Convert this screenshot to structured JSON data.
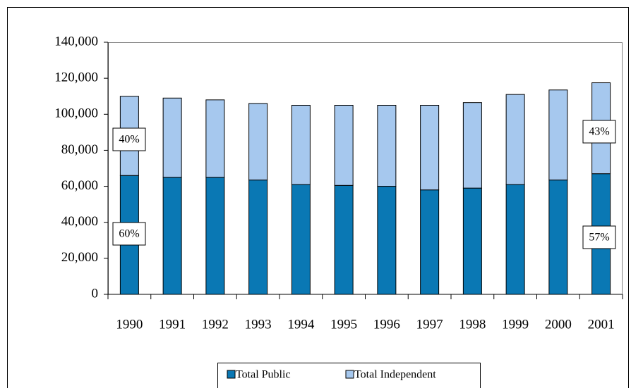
{
  "chart_data": {
    "type": "stacked_bar",
    "categories": [
      "1990",
      "1991",
      "1992",
      "1993",
      "1994",
      "1995",
      "1996",
      "1997",
      "1998",
      "1999",
      "2000",
      "2001"
    ],
    "series": [
      {
        "name": "Total Public",
        "color": "#0a78b4",
        "values": [
          66000,
          65000,
          65000,
          63500,
          61000,
          60500,
          60000,
          58000,
          59000,
          61000,
          63500,
          67000
        ]
      },
      {
        "name": "Total Independent",
        "color": "#a6c8ee",
        "values": [
          44000,
          44000,
          43000,
          42500,
          44000,
          44500,
          45000,
          47000,
          47500,
          50000,
          50000,
          50500
        ]
      }
    ],
    "annotations": [
      "40%",
      "60%",
      "43%",
      "57%"
    ],
    "ylim": [
      0,
      140000
    ],
    "yticks": [
      0,
      {
        "value": 20000,
        "label": "20,000"
      },
      {
        "value": 40000,
        "label": "40,000"
      },
      {
        "value": 60000,
        "label": "60,000"
      },
      {
        "value": 80000,
        "label": "80,000"
      },
      {
        "value": 100000,
        "label": "100,000"
      },
      {
        "value": 120000,
        "label": "120,000"
      },
      {
        "value": 140000,
        "label": "140,000"
      }
    ],
    "grid": false,
    "legend": "bottom"
  }
}
